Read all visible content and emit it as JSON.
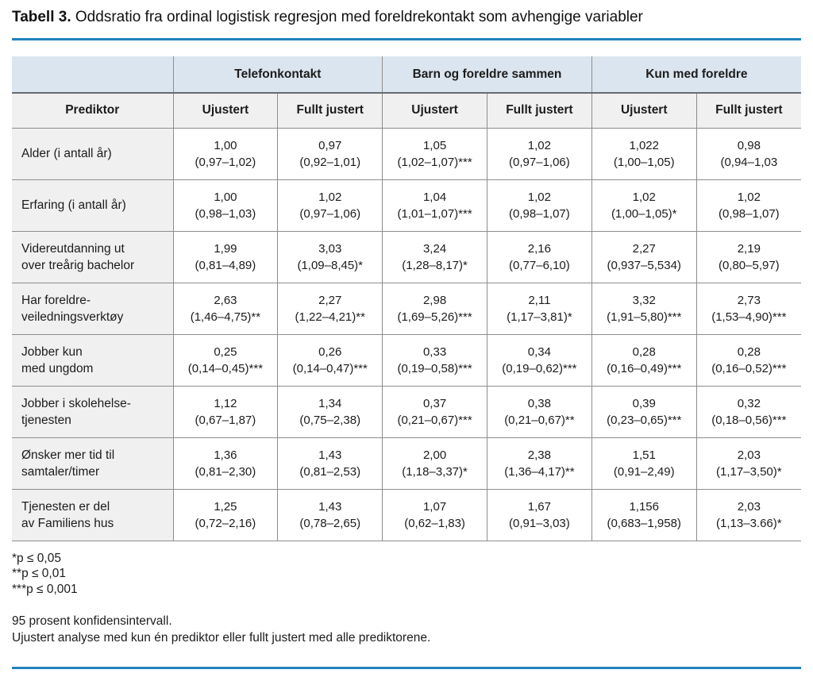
{
  "title": {
    "prefix": "Tabell 3.",
    "text": "Oddsratio fra ordinal logistisk regresjon med foreldrekontakt som avhengige variabler"
  },
  "colors": {
    "accent_rule_blue": "#2381bd",
    "group_header_bg": "#dbe5ef",
    "subheader_bg": "#f0f0f1",
    "cell_border_gray": "#8d8d8d",
    "heavy_border_gray": "#666c73"
  },
  "table": {
    "groups": [
      "Telefonkontakt",
      "Barn og foreldre sammen",
      "Kun med foreldre"
    ],
    "subheaders": [
      "Prediktor",
      "Ujustert",
      "Fullt justert",
      "Ujustert",
      "Fullt justert",
      "Ujustert",
      "Fullt justert"
    ],
    "rows": [
      {
        "predictor_lines": [
          "Alder (i antall år)"
        ],
        "cells": [
          {
            "or": "1,00",
            "ci": "(0,97–1,02)"
          },
          {
            "or": "0,97",
            "ci": "(0,92–1,01)"
          },
          {
            "or": "1,05",
            "ci": "(1,02–1,07)***"
          },
          {
            "or": "1,02",
            "ci": "(0,97–1,06)"
          },
          {
            "or": "1,022",
            "ci": "(1,00–1,05)"
          },
          {
            "or": "0,98",
            "ci": "(0,94–1,03"
          }
        ]
      },
      {
        "predictor_lines": [
          "Erfaring (i antall år)"
        ],
        "cells": [
          {
            "or": "1,00",
            "ci": "(0,98–1,03)"
          },
          {
            "or": "1,02",
            "ci": "(0,97–1,06)"
          },
          {
            "or": "1,04",
            "ci": "(1,01–1,07)***"
          },
          {
            "or": "1,02",
            "ci": "(0,98–1,07)"
          },
          {
            "or": "1,02",
            "ci": "(1,00–1,05)*"
          },
          {
            "or": "1,02",
            "ci": "(0,98–1,07)"
          }
        ]
      },
      {
        "predictor_lines": [
          "Videreutdanning ut",
          "over treårig bachelor"
        ],
        "cells": [
          {
            "or": "1,99",
            "ci": "(0,81–4,89)"
          },
          {
            "or": "3,03",
            "ci": "(1,09–8,45)*"
          },
          {
            "or": "3,24",
            "ci": "(1,28–8,17)*"
          },
          {
            "or": "2,16",
            "ci": "(0,77–6,10)"
          },
          {
            "or": "2,27",
            "ci": "(0,937–5,534)"
          },
          {
            "or": "2,19",
            "ci": "(0,80–5,97)"
          }
        ]
      },
      {
        "predictor_lines": [
          "Har foreldre-",
          "veiledningsverktøy"
        ],
        "cells": [
          {
            "or": "2,63",
            "ci": "(1,46–4,75)**"
          },
          {
            "or": "2,27",
            "ci": "(1,22–4,21)**"
          },
          {
            "or": "2,98",
            "ci": "(1,69–5,26)***"
          },
          {
            "or": "2,11",
            "ci": "(1,17–3,81)*"
          },
          {
            "or": "3,32",
            "ci": "(1,91–5,80)***"
          },
          {
            "or": "2,73",
            "ci": "(1,53–4,90)***"
          }
        ]
      },
      {
        "predictor_lines": [
          "Jobber kun",
          "med ungdom"
        ],
        "cells": [
          {
            "or": "0,25",
            "ci": "(0,14–0,45)***"
          },
          {
            "or": "0,26",
            "ci": "(0,14–0,47)***"
          },
          {
            "or": "0,33",
            "ci": "(0,19–0,58)***"
          },
          {
            "or": "0,34",
            "ci": "(0,19–0,62)***"
          },
          {
            "or": "0,28",
            "ci": "(0,16–0,49)***"
          },
          {
            "or": "0,28",
            "ci": "(0,16–0,52)***"
          }
        ]
      },
      {
        "predictor_lines": [
          "Jobber i skolehelse-",
          "tjenesten"
        ],
        "cells": [
          {
            "or": "1,12",
            "ci": "(0,67–1,87)"
          },
          {
            "or": "1,34",
            "ci": "(0,75–2,38)"
          },
          {
            "or": "0,37",
            "ci": "(0,21–0,67)***"
          },
          {
            "or": "0,38",
            "ci": "(0,21–0,67)**"
          },
          {
            "or": "0,39",
            "ci": "(0,23–0,65)***"
          },
          {
            "or": "0,32",
            "ci": "(0,18–0,56)***"
          }
        ]
      },
      {
        "predictor_lines": [
          "Ønsker mer tid til",
          "samtaler/timer"
        ],
        "cells": [
          {
            "or": "1,36",
            "ci": "(0,81–2,30)"
          },
          {
            "or": "1,43",
            "ci": "(0,81–2,53)"
          },
          {
            "or": "2,00",
            "ci": "(1,18–3,37)*"
          },
          {
            "or": "2,38",
            "ci": "(1,36–4,17)**"
          },
          {
            "or": "1,51",
            "ci": "(0,91–2,49)"
          },
          {
            "or": "2,03",
            "ci": "(1,17–3,50)*"
          }
        ]
      },
      {
        "predictor_lines": [
          "Tjenesten er del",
          "av Familiens hus"
        ],
        "cells": [
          {
            "or": "1,25",
            "ci": "(0,72–2,16)"
          },
          {
            "or": "1,43",
            "ci": "(0,78–2,65)"
          },
          {
            "or": "1,07",
            "ci": "(0,62–1,83)"
          },
          {
            "or": "1,67",
            "ci": "(0,91–3,03)"
          },
          {
            "or": "1,156",
            "ci": "(0,683–1,958)"
          },
          {
            "or": "2,03",
            "ci": "(1,13–3.66)*"
          }
        ]
      }
    ]
  },
  "significance_legend": [
    "*p ≤ 0,05",
    "**p ≤ 0,01",
    "***p ≤ 0,001"
  ],
  "notes": [
    "95 prosent konfidensintervall.",
    "Ujustert analyse med kun én prediktor eller fullt justert med alle prediktorene."
  ]
}
